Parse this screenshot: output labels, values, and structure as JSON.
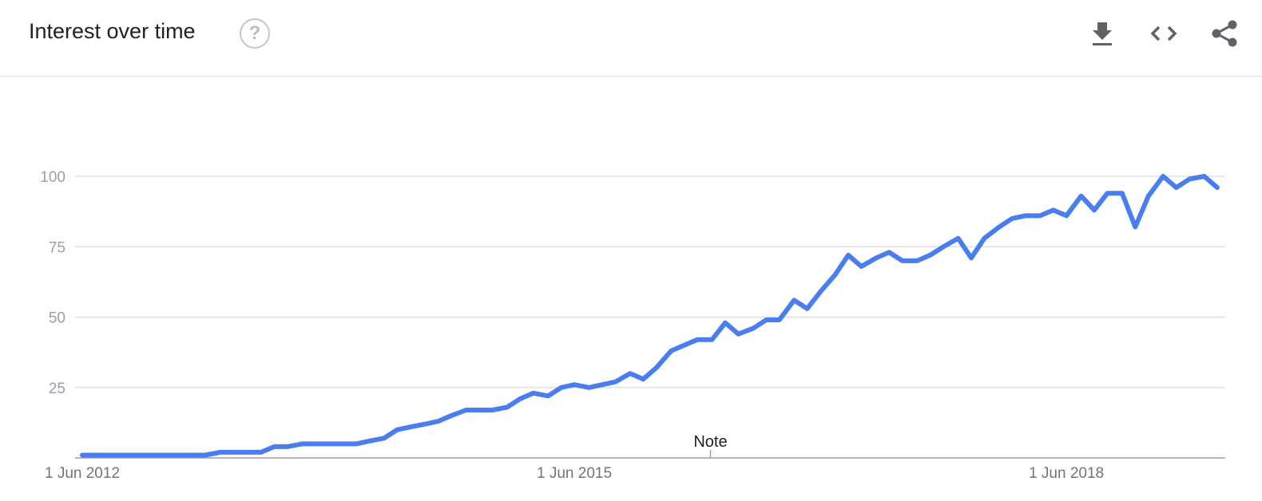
{
  "header": {
    "title": "Interest over time",
    "help_glyph": "?",
    "icons": [
      "help-icon",
      "download-icon",
      "embed-code-icon",
      "share-icon"
    ]
  },
  "colors": {
    "line": "#4a7ef0",
    "grid": "#e0e0e0",
    "axis": "#9e9e9e"
  },
  "chart_data": {
    "type": "line",
    "title": "Interest over time",
    "xlabel": "",
    "ylabel": "",
    "ylim": [
      0,
      100
    ],
    "yticks": [
      25,
      50,
      75,
      100
    ],
    "x_tick_labels": [
      {
        "label": "1 Jun 2012",
        "x": 2012.42
      },
      {
        "label": "1 Jun 2015",
        "x": 2015.42
      },
      {
        "label": "1 Jun 2018",
        "x": 2018.42
      }
    ],
    "xlim": [
      2012.42,
      2019.5
    ],
    "grid": true,
    "annotations": [
      {
        "label": "Note",
        "x": 2016.25
      }
    ],
    "series": [
      {
        "values": [
          {
            "x": 2012.42,
            "y": 1
          },
          {
            "x": 2012.51,
            "y": 1
          },
          {
            "x": 2012.59,
            "y": 1
          },
          {
            "x": 2012.67,
            "y": 1
          },
          {
            "x": 2012.76,
            "y": 1
          },
          {
            "x": 2012.84,
            "y": 1
          },
          {
            "x": 2012.92,
            "y": 1
          },
          {
            "x": 2013.01,
            "y": 1
          },
          {
            "x": 2013.09,
            "y": 1
          },
          {
            "x": 2013.17,
            "y": 1
          },
          {
            "x": 2013.26,
            "y": 2
          },
          {
            "x": 2013.34,
            "y": 2
          },
          {
            "x": 2013.42,
            "y": 2
          },
          {
            "x": 2013.51,
            "y": 2
          },
          {
            "x": 2013.59,
            "y": 4
          },
          {
            "x": 2013.67,
            "y": 4
          },
          {
            "x": 2013.76,
            "y": 5
          },
          {
            "x": 2013.84,
            "y": 5
          },
          {
            "x": 2013.92,
            "y": 5
          },
          {
            "x": 2014.01,
            "y": 5
          },
          {
            "x": 2014.09,
            "y": 5
          },
          {
            "x": 2014.17,
            "y": 6
          },
          {
            "x": 2014.26,
            "y": 7
          },
          {
            "x": 2014.34,
            "y": 10
          },
          {
            "x": 2014.42,
            "y": 11
          },
          {
            "x": 2014.51,
            "y": 12
          },
          {
            "x": 2014.59,
            "y": 13
          },
          {
            "x": 2014.67,
            "y": 15
          },
          {
            "x": 2014.76,
            "y": 17
          },
          {
            "x": 2014.84,
            "y": 17
          },
          {
            "x": 2014.92,
            "y": 17
          },
          {
            "x": 2015.01,
            "y": 18
          },
          {
            "x": 2015.09,
            "y": 21
          },
          {
            "x": 2015.17,
            "y": 23
          },
          {
            "x": 2015.26,
            "y": 22
          },
          {
            "x": 2015.34,
            "y": 25
          },
          {
            "x": 2015.42,
            "y": 26
          },
          {
            "x": 2015.51,
            "y": 25
          },
          {
            "x": 2015.59,
            "y": 26
          },
          {
            "x": 2015.67,
            "y": 27
          },
          {
            "x": 2015.76,
            "y": 30
          },
          {
            "x": 2015.84,
            "y": 28
          },
          {
            "x": 2015.92,
            "y": 32
          },
          {
            "x": 2016.01,
            "y": 38
          },
          {
            "x": 2016.09,
            "y": 40
          },
          {
            "x": 2016.17,
            "y": 42
          },
          {
            "x": 2016.26,
            "y": 42
          },
          {
            "x": 2016.34,
            "y": 48
          },
          {
            "x": 2016.42,
            "y": 44
          },
          {
            "x": 2016.51,
            "y": 46
          },
          {
            "x": 2016.59,
            "y": 49
          },
          {
            "x": 2016.67,
            "y": 49
          },
          {
            "x": 2016.76,
            "y": 56
          },
          {
            "x": 2016.84,
            "y": 53
          },
          {
            "x": 2016.92,
            "y": 59
          },
          {
            "x": 2017.01,
            "y": 65
          },
          {
            "x": 2017.09,
            "y": 72
          },
          {
            "x": 2017.17,
            "y": 68
          },
          {
            "x": 2017.26,
            "y": 71
          },
          {
            "x": 2017.34,
            "y": 73
          },
          {
            "x": 2017.42,
            "y": 70
          },
          {
            "x": 2017.51,
            "y": 70
          },
          {
            "x": 2017.59,
            "y": 72
          },
          {
            "x": 2017.67,
            "y": 75
          },
          {
            "x": 2017.76,
            "y": 78
          },
          {
            "x": 2017.84,
            "y": 71
          },
          {
            "x": 2017.92,
            "y": 78
          },
          {
            "x": 2018.01,
            "y": 82
          },
          {
            "x": 2018.09,
            "y": 85
          },
          {
            "x": 2018.17,
            "y": 86
          },
          {
            "x": 2018.26,
            "y": 86
          },
          {
            "x": 2018.34,
            "y": 88
          },
          {
            "x": 2018.42,
            "y": 86
          },
          {
            "x": 2018.51,
            "y": 93
          },
          {
            "x": 2018.59,
            "y": 88
          },
          {
            "x": 2018.67,
            "y": 94
          },
          {
            "x": 2018.76,
            "y": 94
          },
          {
            "x": 2018.84,
            "y": 82
          },
          {
            "x": 2018.92,
            "y": 93
          },
          {
            "x": 2019.01,
            "y": 100
          },
          {
            "x": 2019.09,
            "y": 96
          },
          {
            "x": 2019.17,
            "y": 99
          },
          {
            "x": 2019.26,
            "y": 100
          },
          {
            "x": 2019.34,
            "y": 96
          }
        ]
      }
    ]
  }
}
